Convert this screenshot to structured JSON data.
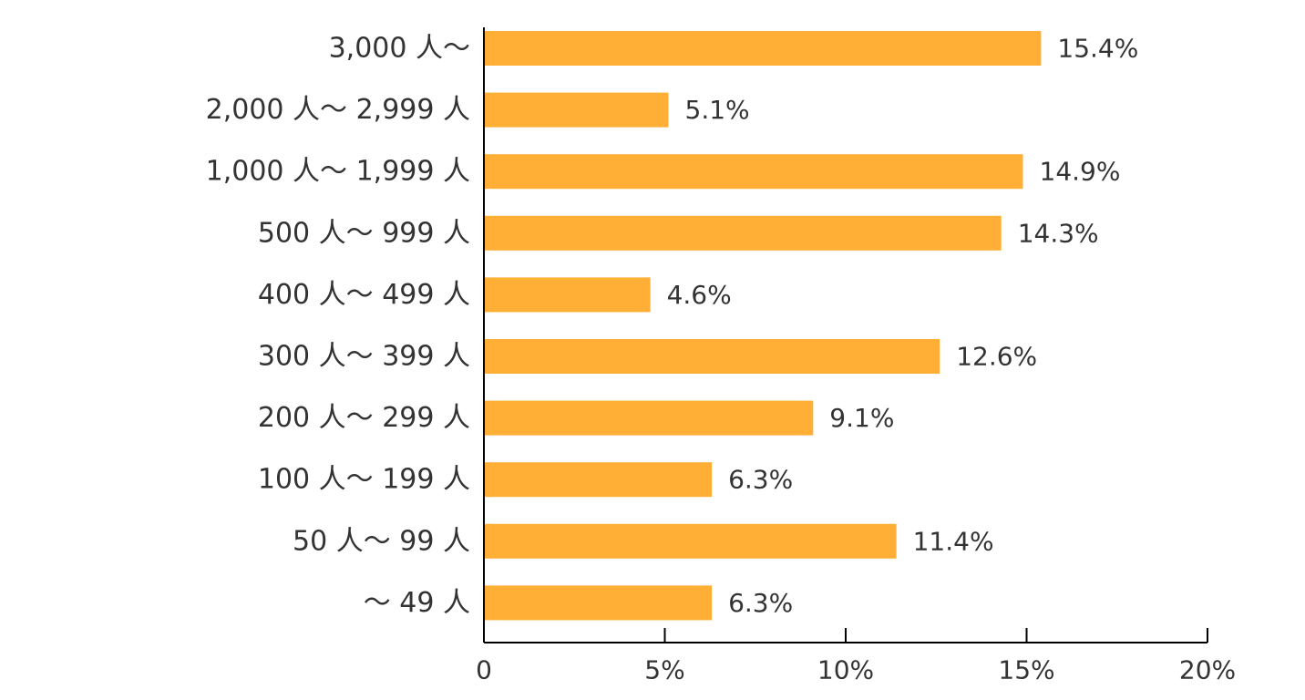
{
  "chart_data": {
    "type": "bar",
    "orientation": "horizontal",
    "categories": [
      "3,000 人～",
      "2,000 人～ 2,999 人",
      "1,000 人～ 1,999 人",
      "500 人～ 999 人",
      "400 人～ 499 人",
      "300 人～ 399 人",
      "200 人～ 299 人",
      "100 人～ 199 人",
      "50 人～ 99 人",
      "～ 49 人"
    ],
    "values": [
      15.4,
      5.1,
      14.9,
      14.3,
      4.6,
      12.6,
      9.1,
      6.3,
      11.4,
      6.3
    ],
    "data_labels": [
      "15.4%",
      "5.1%",
      "14.9%",
      "14.3%",
      "4.6%",
      "12.6%",
      "9.1%",
      "6.3%",
      "11.4%",
      "6.3%"
    ],
    "xlim": [
      0,
      20
    ],
    "x_ticks": [
      0,
      5,
      10,
      15,
      20
    ],
    "x_tick_labels": [
      "0",
      "5%",
      "10%",
      "15%",
      "20%"
    ],
    "bar_color": "#FFAE36",
    "axis_color": "#000000",
    "text_color": "#333333",
    "grid": false,
    "legend": "none"
  }
}
